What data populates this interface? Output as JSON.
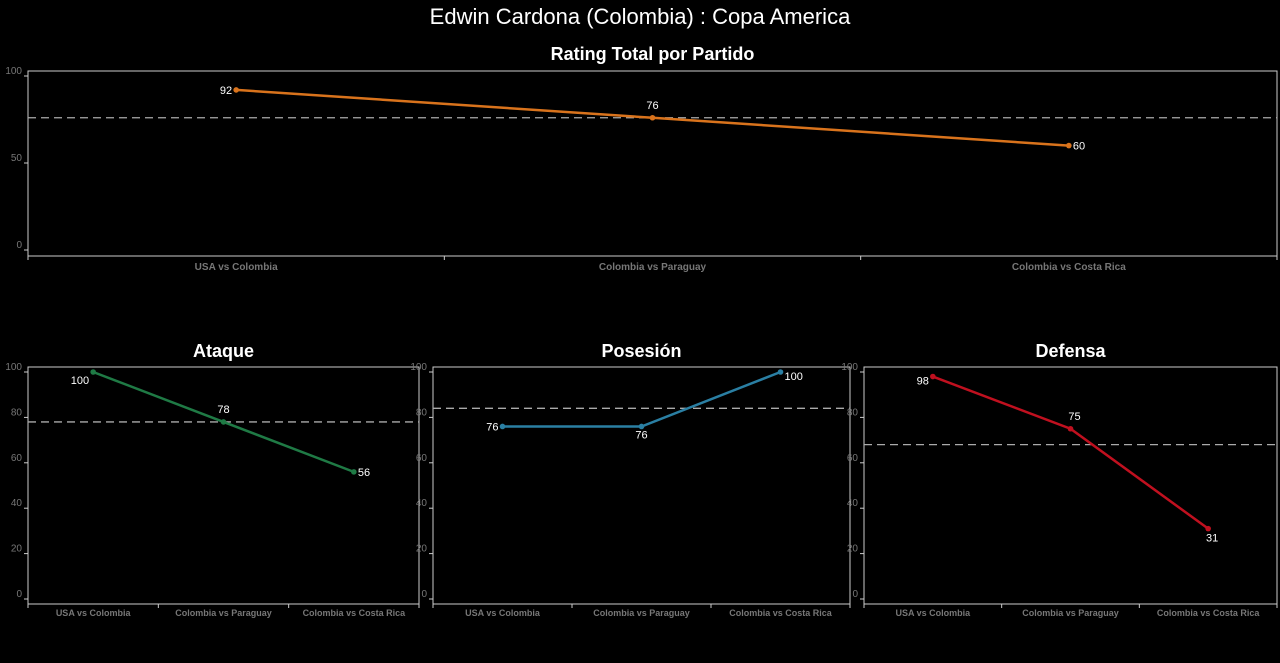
{
  "title": "Edwin Cardona (Colombia) :  Copa  America",
  "chart_data": [
    {
      "type": "line",
      "title": "Rating Total por Partido",
      "categories": [
        "USA vs Colombia",
        "Colombia vs Paraguay",
        "Colombia vs Costa Rica"
      ],
      "values": [
        92,
        76,
        60
      ],
      "data_labels": [
        "92",
        "76",
        "60"
      ],
      "yticks": [
        "0",
        "50",
        "100"
      ],
      "ylim": [
        0,
        100
      ],
      "reference_line": 76,
      "color": "#d9731c"
    },
    {
      "type": "line",
      "title": "Ataque",
      "categories": [
        "USA vs Colombia",
        "Colombia vs Paraguay",
        "Colombia vs Costa Rica"
      ],
      "values": [
        100,
        78,
        56
      ],
      "data_labels": [
        "100",
        "78",
        "56"
      ],
      "yticks": [
        "0",
        "20",
        "40",
        "60",
        "80",
        "100"
      ],
      "ylim": [
        0,
        100
      ],
      "reference_line": 78,
      "color": "#1f7a45"
    },
    {
      "type": "line",
      "title": "Posesión",
      "categories": [
        "USA vs Colombia",
        "Colombia vs Paraguay",
        "Colombia vs Costa Rica"
      ],
      "values": [
        76,
        76,
        100
      ],
      "data_labels": [
        "76",
        "76",
        "100"
      ],
      "yticks": [
        "0",
        "20",
        "40",
        "60",
        "80",
        "100"
      ],
      "ylim": [
        0,
        100
      ],
      "reference_line": 84,
      "color": "#2a7fa3"
    },
    {
      "type": "line",
      "title": "Defensa",
      "categories": [
        "USA vs Colombia",
        "Colombia vs Paraguay",
        "Colombia vs Costa Rica"
      ],
      "values": [
        98,
        75,
        31
      ],
      "data_labels": [
        "98",
        "75",
        "31"
      ],
      "yticks": [
        "0",
        "20",
        "40",
        "60",
        "80",
        "100"
      ],
      "ylim": [
        0,
        100
      ],
      "reference_line": 68,
      "color": "#c0101f"
    }
  ]
}
